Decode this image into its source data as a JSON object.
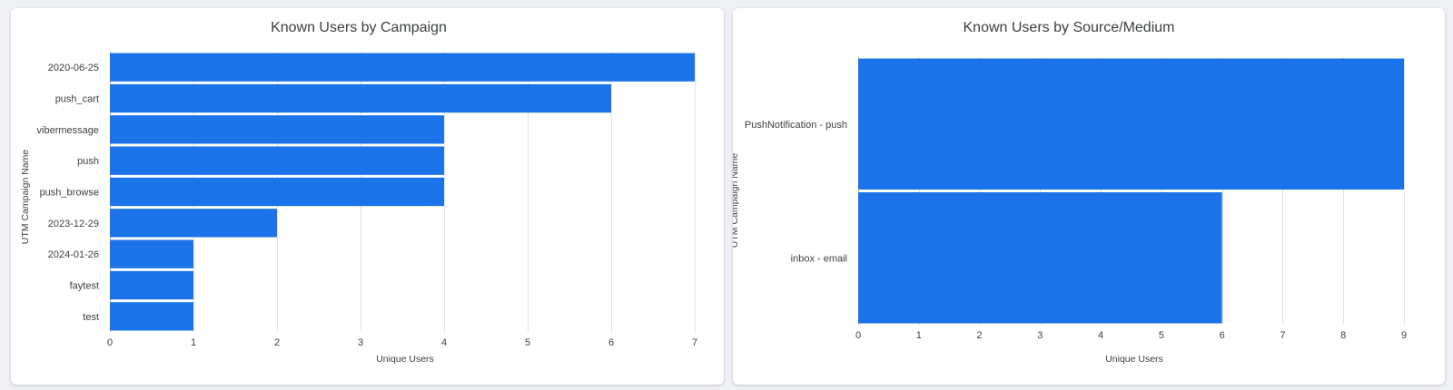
{
  "chart_data": [
    {
      "type": "bar",
      "orientation": "horizontal",
      "title": "Known Users by Campaign",
      "xlabel": "Unique Users",
      "ylabel": "UTM Campaign Name",
      "xlim": [
        0,
        7
      ],
      "xticks": [
        0,
        1,
        2,
        3,
        4,
        5,
        6,
        7
      ],
      "grid": true,
      "color": "#1a73e8",
      "categories": [
        "2020-06-25",
        "push_cart",
        "vibermessage",
        "push",
        "push_browse",
        "2023-12-29",
        "2024-01-26",
        "faytest",
        "test"
      ],
      "values": [
        7,
        6,
        4,
        4,
        4,
        2,
        1,
        1,
        1
      ]
    },
    {
      "type": "bar",
      "orientation": "horizontal",
      "title": "Known Users by Source/Medium",
      "xlabel": "Unique Users",
      "ylabel": "UTM Campaign Name",
      "xlim": [
        0,
        9
      ],
      "xticks": [
        0,
        1,
        2,
        3,
        4,
        5,
        6,
        7,
        8,
        9
      ],
      "grid": true,
      "color": "#1a73e8",
      "categories": [
        "PushNotification - push",
        "inbox - email"
      ],
      "values": [
        9,
        6
      ]
    }
  ]
}
